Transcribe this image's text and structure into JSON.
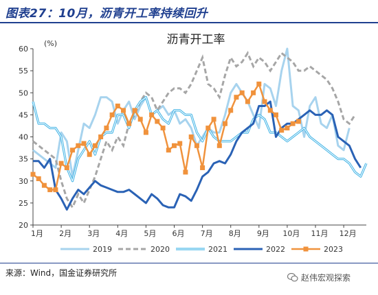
{
  "header": {
    "title": "图表27：10月，沥青开工率持续回升"
  },
  "footer": {
    "source": "来源：Wind，国金证券研究所",
    "watermark": "赵伟宏观探索"
  },
  "colors": {
    "brand": "#1f3f8f",
    "y2019": "#a7d3ee",
    "y2020": "#a6a6a6",
    "y2021": "#42b4e6",
    "y2022": "#2a62b5",
    "y2023": "#f0923c"
  },
  "icons": {
    "watermark": "wechat-icon"
  },
  "chart_data": {
    "type": "line",
    "title": "沥青开工率",
    "unit": "(%)",
    "xlabel": "",
    "ylabel": "",
    "x_ticks": [
      "1月",
      "2月",
      "3月",
      "4月",
      "5月",
      "6月",
      "7月",
      "8月",
      "9月",
      "10月",
      "11月",
      "12月"
    ],
    "y_ticks": [
      20,
      25,
      30,
      35,
      40,
      45,
      50,
      55,
      60
    ],
    "ylim": [
      20,
      60
    ],
    "xlim": [
      1,
      12.8
    ],
    "grid": false,
    "legend_position": "bottom",
    "series": [
      {
        "name": "2019",
        "style": "solid-light",
        "color": "#a7d3ee",
        "x": [
          1.0,
          1.2,
          1.4,
          1.6,
          1.8,
          2.0,
          2.2,
          2.4,
          2.6,
          2.8,
          3.0,
          3.2,
          3.4,
          3.6,
          3.8,
          4.0,
          4.2,
          4.4,
          4.6,
          4.8,
          5.0,
          5.2,
          5.4,
          5.6,
          5.8,
          6.0,
          6.2,
          6.4,
          6.6,
          6.8,
          7.0,
          7.2,
          7.4,
          7.6,
          7.8,
          8.0,
          8.2,
          8.4,
          8.6,
          8.8,
          9.0,
          9.2,
          9.4,
          9.6,
          9.8,
          10.0,
          10.2,
          10.4,
          10.6,
          10.8,
          11.0,
          11.2,
          11.4,
          11.6,
          11.8,
          12.0,
          12.2,
          12.4,
          12.6
        ],
        "y": [
          37,
          36,
          35,
          34,
          33,
          41,
          39,
          31,
          37,
          43,
          42,
          45,
          49,
          49,
          48,
          43,
          46,
          48,
          44,
          47,
          49,
          45,
          46,
          47,
          45,
          46,
          43,
          44,
          42,
          38,
          40,
          42,
          41,
          41,
          45,
          50,
          52,
          50,
          48,
          45,
          42,
          52,
          51,
          47,
          55,
          60,
          47,
          46,
          40,
          47,
          49,
          43,
          42,
          45,
          38,
          37,
          42,
          null,
          null
        ]
      },
      {
        "name": "2020",
        "style": "dashed",
        "color": "#a6a6a6",
        "x": [
          1.0,
          1.2,
          1.4,
          1.6,
          1.8,
          2.0,
          2.2,
          2.4,
          2.6,
          2.8,
          3.0,
          3.2,
          3.4,
          3.6,
          3.8,
          4.0,
          4.2,
          4.4,
          4.6,
          4.8,
          5.0,
          5.2,
          5.4,
          5.6,
          5.8,
          6.0,
          6.2,
          6.4,
          6.6,
          6.8,
          7.0,
          7.2,
          7.4,
          7.6,
          7.8,
          8.0,
          8.2,
          8.4,
          8.6,
          8.8,
          9.0,
          9.2,
          9.4,
          9.6,
          9.8,
          10.0,
          10.2,
          10.4,
          10.6,
          10.8,
          11.0,
          11.2,
          11.4,
          11.6,
          11.8,
          12.0,
          12.2,
          12.4,
          12.6
        ],
        "y": [
          39,
          38,
          37,
          36,
          35,
          30,
          26,
          24,
          27,
          25,
          28,
          31,
          35,
          39,
          37,
          40,
          38,
          43,
          45,
          48,
          50,
          49,
          46,
          48,
          50,
          51,
          51,
          50,
          52,
          55,
          58,
          52,
          51,
          49,
          54,
          58,
          56,
          57,
          59,
          56,
          58,
          57,
          55,
          57,
          59,
          58,
          57,
          55,
          55,
          56,
          55,
          54,
          53,
          51,
          48,
          44,
          43,
          45,
          null
        ]
      },
      {
        "name": "2021",
        "style": "double-line",
        "color": "#42b4e6",
        "x": [
          1.0,
          1.2,
          1.4,
          1.6,
          1.8,
          2.0,
          2.2,
          2.4,
          2.6,
          2.8,
          3.0,
          3.2,
          3.4,
          3.6,
          3.8,
          4.0,
          4.2,
          4.4,
          4.6,
          4.8,
          5.0,
          5.2,
          5.4,
          5.6,
          5.8,
          6.0,
          6.2,
          6.4,
          6.6,
          6.8,
          7.0,
          7.2,
          7.4,
          7.6,
          7.8,
          8.0,
          8.2,
          8.4,
          8.6,
          8.8,
          9.0,
          9.2,
          9.4,
          9.6,
          9.8,
          10.0,
          10.2,
          10.4,
          10.6,
          10.8,
          11.0,
          11.2,
          11.4,
          11.6,
          11.8,
          12.0,
          12.2,
          12.4,
          12.6,
          12.8
        ],
        "y": [
          48,
          43,
          43,
          42,
          42,
          40,
          33,
          30,
          35,
          37,
          39,
          36,
          40,
          41,
          41,
          45,
          45,
          42,
          46,
          48,
          49,
          45,
          46,
          44,
          43,
          46,
          46,
          45,
          45,
          41,
          39,
          42,
          40,
          39,
          39,
          39,
          40,
          41,
          41,
          44,
          45,
          44,
          41,
          41,
          40,
          39,
          40,
          41,
          42,
          40,
          39,
          38,
          37,
          36,
          35,
          35,
          34,
          32,
          31,
          34
        ]
      },
      {
        "name": "2022",
        "style": "solid-bold",
        "color": "#2a62b5",
        "x": [
          1.0,
          1.2,
          1.4,
          1.6,
          1.8,
          2.0,
          2.2,
          2.4,
          2.6,
          2.8,
          3.0,
          3.2,
          3.4,
          3.6,
          3.8,
          4.0,
          4.2,
          4.4,
          4.6,
          4.8,
          5.0,
          5.2,
          5.4,
          5.6,
          5.8,
          6.0,
          6.2,
          6.4,
          6.6,
          6.8,
          7.0,
          7.2,
          7.4,
          7.6,
          7.8,
          8.0,
          8.2,
          8.4,
          8.6,
          8.8,
          9.0,
          9.2,
          9.4,
          9.6,
          9.8,
          10.0,
          10.2,
          10.4,
          10.6,
          10.8,
          11.0,
          11.2,
          11.4,
          11.6,
          11.8,
          12.0,
          12.2,
          12.4,
          12.6
        ],
        "y": [
          34.5,
          34.5,
          33,
          35,
          28,
          26,
          23.5,
          26,
          28,
          27,
          28.5,
          30,
          29,
          28.5,
          28,
          27.5,
          27.5,
          28,
          27,
          26,
          25,
          27,
          26,
          24.5,
          24,
          24,
          27,
          26.5,
          25.5,
          28,
          31,
          32,
          34,
          34.5,
          34,
          36,
          39,
          41,
          42,
          43,
          47,
          47,
          48,
          40,
          42,
          43,
          43,
          44,
          45,
          46,
          45,
          45,
          46,
          45,
          40,
          39,
          38,
          35,
          33
        ]
      },
      {
        "name": "2023",
        "style": "marker-square",
        "color": "#f0923c",
        "x": [
          1.0,
          1.2,
          1.4,
          1.6,
          1.8,
          2.0,
          2.2,
          2.4,
          2.6,
          2.8,
          3.0,
          3.2,
          3.4,
          3.6,
          3.8,
          4.0,
          4.2,
          4.4,
          4.6,
          4.8,
          5.0,
          5.2,
          5.4,
          5.6,
          5.8,
          6.0,
          6.2,
          6.4,
          6.6,
          6.8,
          7.0,
          7.2,
          7.4,
          7.6,
          7.8,
          8.0,
          8.2,
          8.4,
          8.6,
          8.8,
          9.0,
          9.2,
          9.4,
          9.6,
          9.8,
          10.0,
          10.2,
          10.4
        ],
        "y": [
          31.5,
          30.5,
          29,
          28,
          28,
          34,
          33,
          37,
          38,
          38.5,
          36,
          38,
          40,
          42,
          45,
          47,
          46,
          43,
          46,
          44,
          41,
          45,
          43.5,
          42,
          37,
          38,
          38.5,
          32,
          40,
          38,
          33,
          42,
          44,
          38,
          43,
          46,
          49,
          50,
          48,
          50,
          52,
          48,
          46,
          45,
          41.5,
          42,
          43,
          43.5
        ]
      }
    ]
  }
}
